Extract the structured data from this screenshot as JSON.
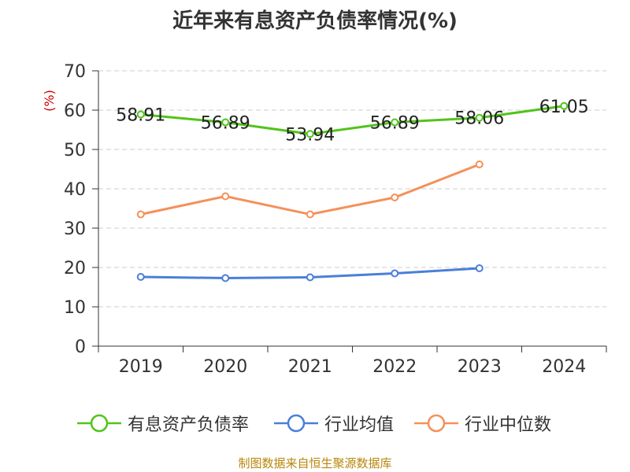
{
  "title": "近年来有息资产负债率情况(%)",
  "footer": "制图数据来自恒生聚源数据库",
  "chart_data": {
    "type": "line",
    "title": "近年来有息资产负债率情况(%)",
    "ylabel": "(%)",
    "xlabel": "",
    "categories": [
      "2019",
      "2020",
      "2021",
      "2022",
      "2023",
      "2024"
    ],
    "ylim": [
      0,
      70
    ],
    "yticks": [
      0,
      10,
      20,
      30,
      40,
      50,
      60,
      70
    ],
    "grid": true,
    "legend_position": "bottom",
    "series": [
      {
        "name": "有息资产负债率",
        "color": "#52c41a",
        "values": [
          58.91,
          56.89,
          53.94,
          56.89,
          58.06,
          61.05
        ],
        "labels": [
          "58.91",
          "56.89",
          "53.94",
          "56.89",
          "58.06",
          "61.05"
        ]
      },
      {
        "name": "行业均值",
        "color": "#4a7fd9",
        "values": [
          17.6,
          17.3,
          17.5,
          18.5,
          19.8,
          null
        ]
      },
      {
        "name": "行业中位数",
        "color": "#f5905a",
        "values": [
          33.5,
          38.1,
          33.5,
          37.8,
          46.2,
          null
        ]
      }
    ]
  },
  "colors": {
    "axis": "#333333",
    "grid": "#cccccc",
    "ylabel": "#cc0000",
    "footer": "#b8860b"
  }
}
